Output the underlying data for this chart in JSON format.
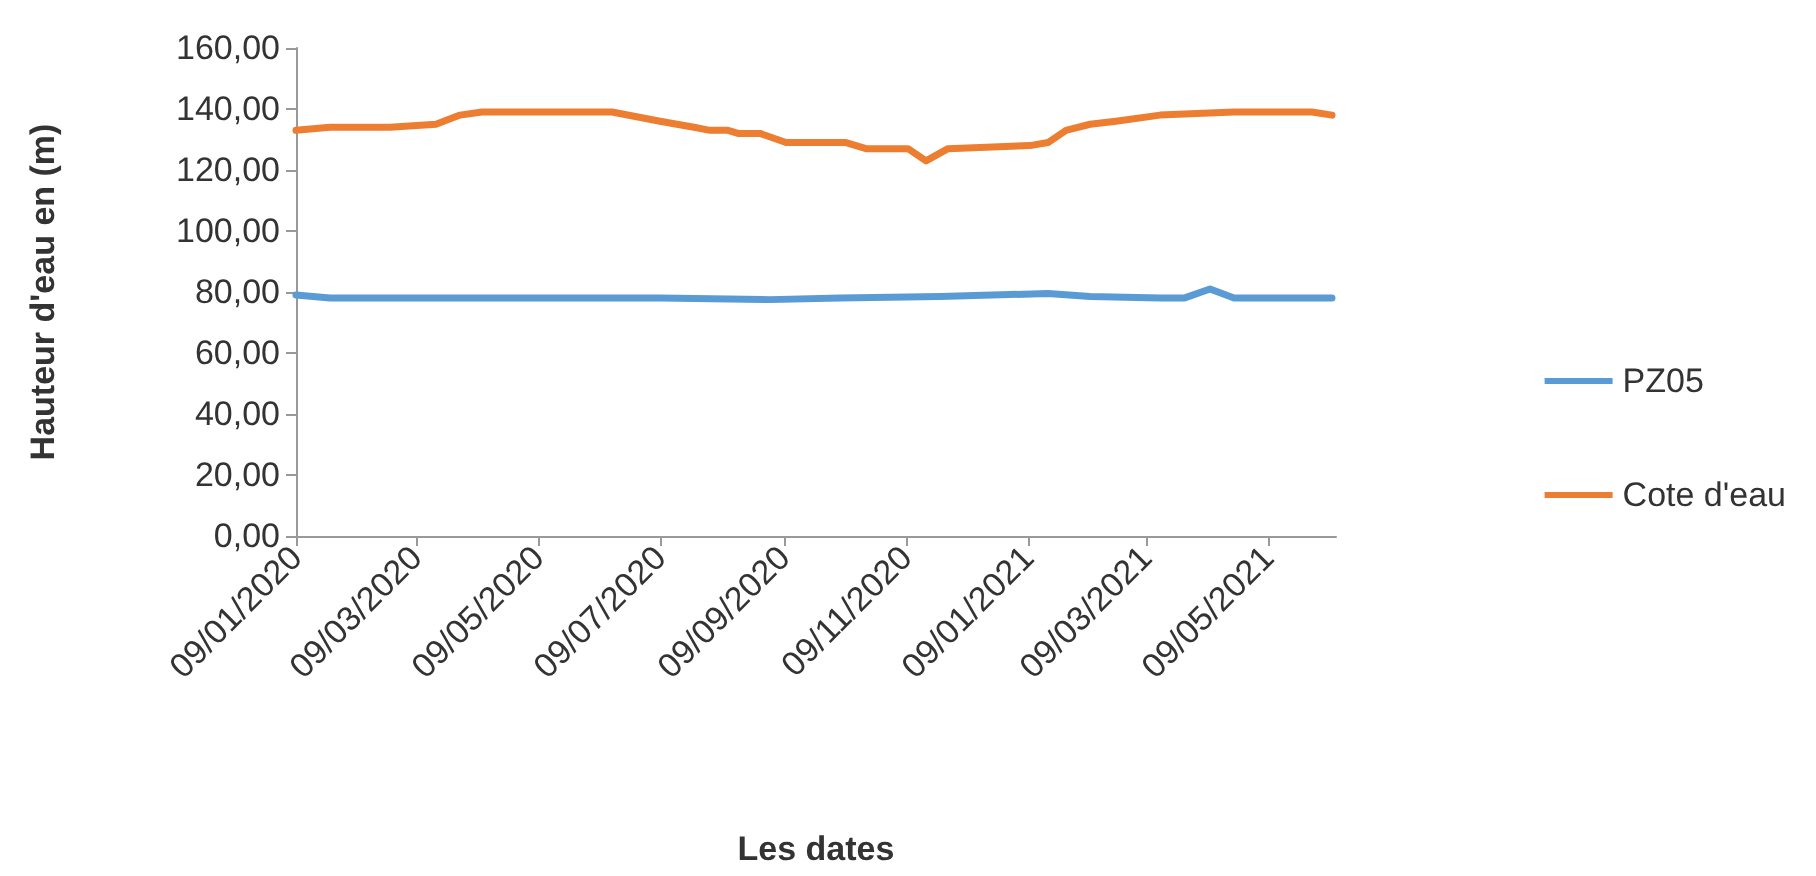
{
  "chart_data": {
    "type": "line",
    "xlabel": "Les dates",
    "ylabel": "Hauteur d'eau en (m)",
    "legend": "right",
    "grid": false,
    "marker": "none",
    "xlim": [
      "2020-01-09",
      "2021-06-12"
    ],
    "xticks": [
      {
        "value": "2020-01-09",
        "label": "09/01/2020"
      },
      {
        "value": "2020-03-09",
        "label": "09/03/2020"
      },
      {
        "value": "2020-05-09",
        "label": "09/05/2020"
      },
      {
        "value": "2020-07-09",
        "label": "09/07/2020"
      },
      {
        "value": "2020-09-09",
        "label": "09/09/2020"
      },
      {
        "value": "2020-11-09",
        "label": "09/11/2020"
      },
      {
        "value": "2021-01-09",
        "label": "09/01/2021"
      },
      {
        "value": "2021-03-09",
        "label": "09/03/2021"
      },
      {
        "value": "2021-05-09",
        "label": "09/05/2021"
      }
    ],
    "ylim": [
      0,
      160
    ],
    "yticks": [
      {
        "value": 0,
        "label": "0,00"
      },
      {
        "value": 20,
        "label": "20,00"
      },
      {
        "value": 40,
        "label": "40,00"
      },
      {
        "value": 60,
        "label": "60,00"
      },
      {
        "value": 80,
        "label": "80,00"
      },
      {
        "value": 100,
        "label": "100,00"
      },
      {
        "value": 120,
        "label": "120,00"
      },
      {
        "value": 140,
        "label": "140,00"
      },
      {
        "value": 160,
        "label": "160,00"
      }
    ],
    "series": [
      {
        "name": "PZ05",
        "color": "#5b9bd5",
        "x": [
          "2020-01-09",
          "2020-01-26",
          "2020-07-09",
          "2020-09-02",
          "2020-10-07",
          "2020-11-26",
          "2021-01-19",
          "2021-02-09",
          "2021-03-16",
          "2021-03-28",
          "2021-04-10",
          "2021-04-22",
          "2021-06-10"
        ],
        "values": [
          79,
          78,
          78,
          77.5,
          78,
          78.5,
          79.5,
          78.5,
          78,
          78,
          81,
          78,
          78
        ]
      },
      {
        "name": "Cote d'eau",
        "color": "#ed7d31",
        "x": [
          "2020-01-09",
          "2020-01-26",
          "2020-02-25",
          "2020-03-19",
          "2020-03-31",
          "2020-04-11",
          "2020-06-15",
          "2020-07-09",
          "2020-07-26",
          "2020-08-03",
          "2020-08-12",
          "2020-08-17",
          "2020-08-28",
          "2020-09-10",
          "2020-10-10",
          "2020-10-20",
          "2020-11-10",
          "2020-11-19",
          "2020-11-30",
          "2021-01-10",
          "2021-01-19",
          "2021-01-28",
          "2021-02-09",
          "2021-02-22",
          "2021-03-16",
          "2021-04-22",
          "2021-05-31",
          "2021-06-10"
        ],
        "values": [
          133,
          134,
          134,
          135,
          138,
          139,
          139,
          136,
          134,
          133,
          133,
          132,
          132,
          129,
          129,
          127,
          127,
          123,
          127,
          128,
          129,
          133,
          135,
          136,
          138,
          139,
          139,
          138
        ]
      }
    ]
  }
}
